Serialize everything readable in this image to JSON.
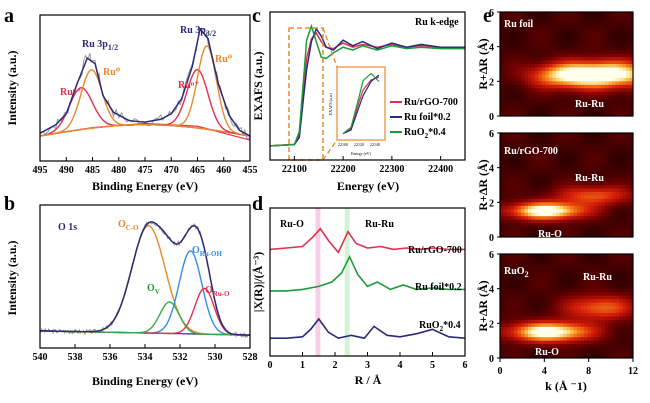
{
  "colors": {
    "ru_rgo": "#e0314f",
    "ru_foil": "#2b2b7a",
    "ruo2": "#1e9a3a",
    "orange": "#e8892b",
    "blue": "#2f8fe6",
    "green_fit": "#3aa84a",
    "raw": "#9a9a9a",
    "pink_band": "#f7c6e3",
    "green_band": "#c9f2cf"
  },
  "panels": {
    "a": {
      "label": "a",
      "xlabel": "Binding Energy (eV)",
      "ylabel": "Intensity (a.u.)",
      "annotations": {
        "ru3p12": "Ru 3p1/2",
        "ru3p32": "Ru 3p3/2",
        "run_left": "Ruⁿ⁺",
        "ru0_left": "Ru⁰",
        "run_right": "Ruⁿ⁺",
        "ru0_right": "Ru⁰"
      }
    },
    "b": {
      "label": "b",
      "xlabel": "Binding Energy (eV)",
      "ylabel": "Intensity (a.u.)",
      "annotations": {
        "o1s": "O 1s",
        "oco": "OC-O",
        "oruoh": "ORu-OH",
        "oruo": "ORu-O",
        "ov": "OV"
      }
    },
    "c": {
      "label": "c",
      "xlabel": "Energy (eV)",
      "ylabel": "EXAFS (a.u.)",
      "corner": "Ru k-edge",
      "inset_xlabel": "Energy (eV)",
      "inset_ylabel": "EXAFS (a.u.)"
    },
    "d": {
      "label": "d",
      "xlabel": "R / Å",
      "ylabel": "|X(R)|/(Å⁻³)",
      "annotations": {
        "ruo": "Ru-O",
        "ruru": "Ru-Ru",
        "s1": "Ru/rGO-700",
        "s2": "Ru foil*0.2",
        "s3": "RuO2*0.4"
      }
    },
    "e": {
      "label": "e",
      "xlabel": "k (Å ⁻1)",
      "ylabel": "R+ΔR (Å)",
      "maps": [
        {
          "title": "Ru foil",
          "labels": [
            "Ru-Ru"
          ]
        },
        {
          "title": "Ru/rGO-700",
          "labels": [
            "Ru-Ru",
            "Ru-O"
          ]
        },
        {
          "title": "RuO2",
          "labels": [
            "Ru-Ru",
            "Ru-O"
          ]
        }
      ]
    }
  },
  "chart_data": [
    {
      "panel": "a",
      "type": "line",
      "x_range": [
        495,
        455
      ],
      "x_ticks": [
        495,
        490,
        485,
        480,
        475,
        470,
        465,
        460,
        455
      ],
      "y_ticks": [],
      "series": [
        {
          "role": "raw",
          "x": [
            495,
            492,
            490,
            488,
            486,
            484.5,
            483,
            481,
            478,
            475,
            472,
            470,
            468,
            466,
            464.5,
            463,
            461,
            459,
            457,
            455
          ],
          "y": [
            0.2,
            0.26,
            0.34,
            0.55,
            0.76,
            0.71,
            0.48,
            0.35,
            0.29,
            0.28,
            0.3,
            0.34,
            0.45,
            0.68,
            0.97,
            0.88,
            0.55,
            0.33,
            0.22,
            0.18
          ]
        },
        {
          "role": "fit",
          "x": [
            495,
            492,
            490,
            488,
            486,
            484.5,
            483,
            481,
            478,
            475,
            472,
            470,
            468,
            466,
            464.5,
            463,
            461,
            459,
            457,
            455
          ],
          "y": [
            0.2,
            0.26,
            0.34,
            0.55,
            0.74,
            0.7,
            0.47,
            0.35,
            0.29,
            0.28,
            0.3,
            0.34,
            0.45,
            0.68,
            0.95,
            0.88,
            0.55,
            0.33,
            0.22,
            0.18
          ]
        },
        {
          "role": "background",
          "x": [
            495,
            485,
            475,
            465,
            460,
            455
          ],
          "y": [
            0.18,
            0.24,
            0.27,
            0.25,
            0.2,
            0.15
          ]
        },
        {
          "name": "Ruⁿ⁺ 3p1/2",
          "role": "peak",
          "center": 487.2,
          "height": 0.3,
          "width": 2.2
        },
        {
          "name": "Ru⁰ 3p1/2",
          "role": "peak",
          "center": 485.2,
          "height": 0.42,
          "width": 2.0
        },
        {
          "name": "Ruⁿ⁺ 3p3/2",
          "role": "peak",
          "center": 465.0,
          "height": 0.42,
          "width": 2.0
        },
        {
          "name": "Ru⁰ 3p3/2",
          "role": "peak",
          "center": 463.2,
          "height": 0.6,
          "width": 1.8
        }
      ]
    },
    {
      "panel": "b",
      "type": "line",
      "x_range": [
        540,
        528
      ],
      "x_ticks": [
        540,
        538,
        536,
        534,
        532,
        530,
        528
      ],
      "y_ticks": [],
      "series": [
        {
          "name": "OC-O",
          "role": "peak",
          "center": 533.8,
          "height": 0.75,
          "width": 0.95
        },
        {
          "name": "ORu-OH",
          "role": "peak",
          "center": 531.4,
          "height": 0.58,
          "width": 0.65
        },
        {
          "name": "ORu-O",
          "role": "peak",
          "center": 530.6,
          "height": 0.32,
          "width": 0.55
        },
        {
          "name": "OV",
          "role": "peak",
          "center": 532.6,
          "height": 0.22,
          "width": 0.55
        },
        {
          "role": "background",
          "x": [
            540,
            534,
            528
          ],
          "y": [
            0.12,
            0.11,
            0.09
          ]
        }
      ]
    },
    {
      "panel": "c",
      "type": "line",
      "x_range": [
        22050,
        22450
      ],
      "x_ticks": [
        22100,
        22200,
        22300,
        22400
      ],
      "series": [
        {
          "name": "Ru/rGO-700",
          "x": [
            22050,
            22100,
            22110,
            22120,
            22125,
            22135,
            22145,
            22155,
            22165,
            22180,
            22200,
            22220,
            22240,
            22270,
            22300,
            22330,
            22360,
            22400,
            22450
          ],
          "y": [
            0.1,
            0.11,
            0.18,
            0.55,
            0.72,
            0.86,
            0.9,
            0.84,
            0.8,
            0.79,
            0.83,
            0.8,
            0.82,
            0.8,
            0.82,
            0.8,
            0.81,
            0.8,
            0.8
          ]
        },
        {
          "name": "Ru foil*0.2",
          "x": [
            22050,
            22100,
            22110,
            22120,
            22125,
            22135,
            22145,
            22155,
            22165,
            22180,
            22200,
            22220,
            22240,
            22270,
            22300,
            22330,
            22360,
            22400,
            22450
          ],
          "y": [
            0.1,
            0.11,
            0.16,
            0.48,
            0.64,
            0.84,
            0.93,
            0.88,
            0.8,
            0.78,
            0.85,
            0.81,
            0.84,
            0.79,
            0.83,
            0.8,
            0.82,
            0.8,
            0.8
          ]
        },
        {
          "name": "RuO2*0.4",
          "x": [
            22050,
            22100,
            22110,
            22120,
            22125,
            22135,
            22145,
            22155,
            22165,
            22180,
            22200,
            22220,
            22240,
            22270,
            22300,
            22330,
            22360,
            22400,
            22450
          ],
          "y": [
            0.1,
            0.11,
            0.2,
            0.62,
            0.85,
            0.95,
            0.84,
            0.73,
            0.72,
            0.76,
            0.8,
            0.78,
            0.81,
            0.78,
            0.81,
            0.79,
            0.8,
            0.79,
            0.79
          ]
        }
      ],
      "inset": {
        "x_ticks": [
          22100,
          22120,
          22140
        ]
      }
    },
    {
      "panel": "d",
      "type": "line",
      "x_range": [
        0,
        6
      ],
      "x_ticks": [
        0,
        1,
        2,
        3,
        4,
        5,
        6
      ],
      "bands": [
        {
          "from": 1.4,
          "to": 1.55
        },
        {
          "from": 2.3,
          "to": 2.45
        }
      ],
      "series": [
        {
          "name": "Ru/rGO-700",
          "x": [
            0,
            0.5,
            1.0,
            1.3,
            1.55,
            1.8,
            2.1,
            2.4,
            2.65,
            3.0,
            3.4,
            3.8,
            4.2,
            4.6,
            5.0,
            5.5,
            6.0
          ],
          "y": [
            0.72,
            0.73,
            0.74,
            0.8,
            0.86,
            0.78,
            0.7,
            0.84,
            0.76,
            0.73,
            0.74,
            0.72,
            0.73,
            0.72,
            0.73,
            0.72,
            0.72
          ]
        },
        {
          "name": "Ru foil*0.2",
          "x": [
            0,
            0.5,
            1.0,
            1.5,
            1.9,
            2.2,
            2.45,
            2.7,
            3.0,
            3.3,
            3.7,
            4.1,
            4.5,
            5.0,
            5.5,
            6.0
          ],
          "y": [
            0.44,
            0.44,
            0.45,
            0.47,
            0.5,
            0.56,
            0.67,
            0.55,
            0.47,
            0.5,
            0.45,
            0.48,
            0.45,
            0.46,
            0.45,
            0.45
          ]
        },
        {
          "name": "RuO2*0.4",
          "x": [
            0,
            0.5,
            1.0,
            1.25,
            1.5,
            1.8,
            2.1,
            2.5,
            2.9,
            3.2,
            3.6,
            4.0,
            4.5,
            5.0,
            5.5,
            6.0
          ],
          "y": [
            0.12,
            0.12,
            0.13,
            0.18,
            0.25,
            0.16,
            0.12,
            0.14,
            0.12,
            0.2,
            0.14,
            0.13,
            0.15,
            0.18,
            0.13,
            0.12
          ]
        }
      ]
    },
    {
      "panel": "e",
      "type": "heatmap",
      "x_range": [
        0,
        12
      ],
      "x_ticks": [
        0,
        4,
        8,
        12
      ],
      "y_range": [
        0,
        6
      ],
      "y_ticks": [
        0,
        2,
        4,
        6
      ],
      "maps": [
        {
          "title": "Ru foil",
          "hotspots": [
            {
              "k": 9.5,
              "r": 2.4,
              "i": 1.0,
              "sk": 3.2,
              "sr": 0.55
            },
            {
              "k": 5.5,
              "r": 2.3,
              "i": 0.45,
              "sk": 2.2,
              "sr": 0.5
            }
          ]
        },
        {
          "title": "Ru/rGO-700",
          "hotspots": [
            {
              "k": 4.2,
              "r": 1.5,
              "i": 1.0,
              "sk": 2.4,
              "sr": 0.35
            },
            {
              "k": 8.5,
              "r": 2.4,
              "i": 0.5,
              "sk": 2.4,
              "sr": 0.4
            }
          ]
        },
        {
          "title": "RuO2",
          "hotspots": [
            {
              "k": 4.5,
              "r": 1.5,
              "i": 1.0,
              "sk": 2.6,
              "sr": 0.4
            },
            {
              "k": 9.0,
              "r": 2.9,
              "i": 0.55,
              "sk": 2.2,
              "sr": 0.5
            }
          ]
        }
      ]
    }
  ]
}
